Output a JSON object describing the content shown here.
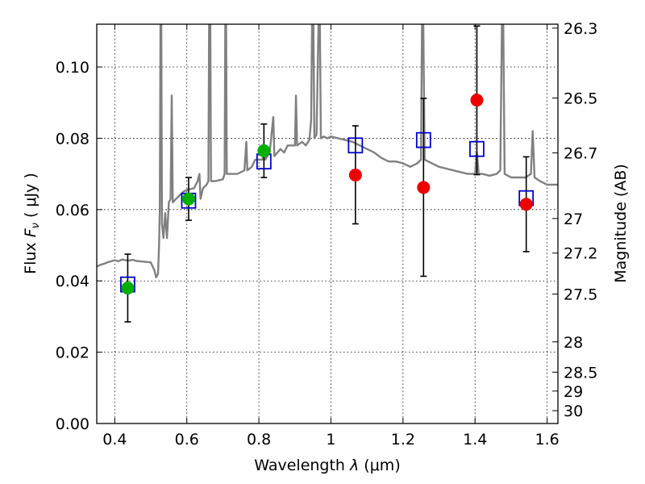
{
  "chart_data": {
    "type": "scatter",
    "xlabel_prefix": "Wavelength  ",
    "xlabel_symbol": "λ",
    "xlabel_unit": " (μm)",
    "ylabel_prefix": "Flux  ",
    "ylabel_symbol": "F",
    "ylabel_subscript": "ν",
    "ylabel_unit": "  ( μJy )",
    "y2label": "Magnitude (AB)",
    "xlim": [
      0.35,
      1.63
    ],
    "ylim": [
      0.0,
      0.112
    ],
    "grid": true,
    "x_ticks": [
      0.4,
      0.6,
      0.8,
      1.0,
      1.2,
      1.4,
      1.6
    ],
    "x_tick_labels": [
      "0.4",
      "0.6",
      "0.8",
      "1",
      "1.2",
      "1.4",
      "1.6"
    ],
    "y_ticks": [
      0.0,
      0.02,
      0.04,
      0.06,
      0.08,
      0.1
    ],
    "y_tick_labels": [
      "0.00",
      "0.02",
      "0.04",
      "0.06",
      "0.08",
      "0.10"
    ],
    "magnitude_ticks": [
      {
        "label": "26.3",
        "flux": 0.1109
      },
      {
        "label": "26.5",
        "flux": 0.0913
      },
      {
        "label": "26.7",
        "flux": 0.0759
      },
      {
        "label": "27",
        "flux": 0.0575
      },
      {
        "label": "27.2",
        "flux": 0.0478
      },
      {
        "label": "27.5",
        "flux": 0.0363
      },
      {
        "label": "28",
        "flux": 0.0229
      },
      {
        "label": "28.5",
        "flux": 0.0144
      },
      {
        "label": "29",
        "flux": 0.0091
      },
      {
        "label": "30",
        "flux": 0.0036
      }
    ],
    "model_spectrum": {
      "color": "#808080",
      "points": [
        [
          0.35,
          0.044
        ],
        [
          0.36,
          0.0445
        ],
        [
          0.37,
          0.0448
        ],
        [
          0.38,
          0.0452
        ],
        [
          0.39,
          0.0455
        ],
        [
          0.4,
          0.0458
        ],
        [
          0.41,
          0.0455
        ],
        [
          0.42,
          0.046
        ],
        [
          0.43,
          0.0458
        ],
        [
          0.44,
          0.0457
        ],
        [
          0.45,
          0.0459
        ],
        [
          0.46,
          0.0456
        ],
        [
          0.47,
          0.0455
        ],
        [
          0.48,
          0.0454
        ],
        [
          0.49,
          0.0453
        ],
        [
          0.5,
          0.0452
        ],
        [
          0.51,
          0.043
        ],
        [
          0.515,
          0.041
        ],
        [
          0.52,
          0.042
        ],
        [
          0.523,
          0.05
        ],
        [
          0.525,
          0.06
        ],
        [
          0.527,
          0.115
        ],
        [
          0.529,
          0.115
        ],
        [
          0.531,
          0.056
        ],
        [
          0.535,
          0.052
        ],
        [
          0.54,
          0.059
        ],
        [
          0.545,
          0.052
        ],
        [
          0.55,
          0.062
        ],
        [
          0.555,
          0.063
        ],
        [
          0.558,
          0.092
        ],
        [
          0.561,
          0.062
        ],
        [
          0.57,
          0.063
        ],
        [
          0.58,
          0.064
        ],
        [
          0.59,
          0.065
        ],
        [
          0.6,
          0.0655
        ],
        [
          0.62,
          0.066
        ],
        [
          0.63,
          0.068
        ],
        [
          0.635,
          0.07
        ],
        [
          0.638,
          0.063
        ],
        [
          0.645,
          0.066
        ],
        [
          0.655,
          0.067
        ],
        [
          0.66,
          0.068
        ],
        [
          0.662,
          0.115
        ],
        [
          0.665,
          0.115
        ],
        [
          0.667,
          0.068
        ],
        [
          0.68,
          0.068
        ],
        [
          0.7,
          0.0685
        ],
        [
          0.705,
          0.07
        ],
        [
          0.707,
          0.115
        ],
        [
          0.709,
          0.115
        ],
        [
          0.711,
          0.07
        ],
        [
          0.72,
          0.07
        ],
        [
          0.74,
          0.07
        ],
        [
          0.75,
          0.0705
        ],
        [
          0.76,
          0.071
        ],
        [
          0.765,
          0.079
        ],
        [
          0.768,
          0.071
        ],
        [
          0.78,
          0.072
        ],
        [
          0.79,
          0.074
        ],
        [
          0.8,
          0.074
        ],
        [
          0.81,
          0.074
        ],
        [
          0.815,
          0.078
        ],
        [
          0.818,
          0.074
        ],
        [
          0.83,
          0.076
        ],
        [
          0.84,
          0.086
        ],
        [
          0.843,
          0.075
        ],
        [
          0.86,
          0.077
        ],
        [
          0.87,
          0.076
        ],
        [
          0.88,
          0.078
        ],
        [
          0.89,
          0.078
        ],
        [
          0.9,
          0.078
        ],
        [
          0.903,
          0.092
        ],
        [
          0.906,
          0.078
        ],
        [
          0.92,
          0.079
        ],
        [
          0.93,
          0.078
        ],
        [
          0.94,
          0.0795
        ],
        [
          0.945,
          0.085
        ],
        [
          0.948,
          0.115
        ],
        [
          0.951,
          0.115
        ],
        [
          0.954,
          0.08
        ],
        [
          0.96,
          0.081
        ],
        [
          0.966,
          0.115
        ],
        [
          0.969,
          0.115
        ],
        [
          0.972,
          0.08
        ],
        [
          0.98,
          0.0805
        ],
        [
          0.99,
          0.08
        ],
        [
          1.0,
          0.0805
        ],
        [
          1.02,
          0.08
        ],
        [
          1.04,
          0.0795
        ],
        [
          1.06,
          0.079
        ],
        [
          1.08,
          0.078
        ],
        [
          1.1,
          0.077
        ],
        [
          1.12,
          0.076
        ],
        [
          1.14,
          0.0745
        ],
        [
          1.16,
          0.0735
        ],
        [
          1.18,
          0.0735
        ],
        [
          1.2,
          0.073
        ],
        [
          1.22,
          0.072
        ],
        [
          1.24,
          0.073
        ],
        [
          1.25,
          0.074
        ],
        [
          1.253,
          0.115
        ],
        [
          1.256,
          0.115
        ],
        [
          1.26,
          0.074
        ],
        [
          1.28,
          0.073
        ],
        [
          1.3,
          0.072
        ],
        [
          1.32,
          0.0715
        ],
        [
          1.34,
          0.071
        ],
        [
          1.36,
          0.0705
        ],
        [
          1.38,
          0.07
        ],
        [
          1.4,
          0.07
        ],
        [
          1.405,
          0.076
        ],
        [
          1.41,
          0.07
        ],
        [
          1.42,
          0.07
        ],
        [
          1.44,
          0.0695
        ],
        [
          1.46,
          0.07
        ],
        [
          1.47,
          0.071
        ],
        [
          1.475,
          0.115
        ],
        [
          1.478,
          0.115
        ],
        [
          1.482,
          0.07
        ],
        [
          1.5,
          0.069
        ],
        [
          1.52,
          0.069
        ],
        [
          1.54,
          0.069
        ],
        [
          1.555,
          0.07
        ],
        [
          1.56,
          0.082
        ],
        [
          1.565,
          0.069
        ],
        [
          1.58,
          0.068
        ],
        [
          1.6,
          0.067
        ],
        [
          1.63,
          0.067
        ]
      ]
    },
    "model_boxes": {
      "color": "#0000cc",
      "points": [
        [
          0.436,
          0.039
        ],
        [
          0.605,
          0.0625
        ],
        [
          0.814,
          0.0735
        ],
        [
          1.068,
          0.078
        ],
        [
          1.257,
          0.0795
        ],
        [
          1.405,
          0.077
        ],
        [
          1.542,
          0.0632
        ]
      ]
    },
    "green_points": {
      "color": "#00b000",
      "points": [
        {
          "x": 0.436,
          "y": 0.038,
          "err_lo": 0.0285,
          "err_hi": 0.0475
        },
        {
          "x": 0.605,
          "y": 0.063,
          "err_lo": 0.057,
          "err_hi": 0.069
        },
        {
          "x": 0.814,
          "y": 0.0765,
          "err_lo": 0.069,
          "err_hi": 0.084
        }
      ]
    },
    "red_points": {
      "color": "#ee0000",
      "points": [
        {
          "x": 1.068,
          "y": 0.0697,
          "err_lo": 0.056,
          "err_hi": 0.0835
        },
        {
          "x": 1.257,
          "y": 0.0662,
          "err_lo": 0.0413,
          "err_hi": 0.0912
        },
        {
          "x": 1.405,
          "y": 0.0907,
          "err_lo": 0.0698,
          "err_hi": 0.1115
        },
        {
          "x": 1.542,
          "y": 0.0615,
          "err_lo": 0.0482,
          "err_hi": 0.0748
        }
      ]
    }
  }
}
